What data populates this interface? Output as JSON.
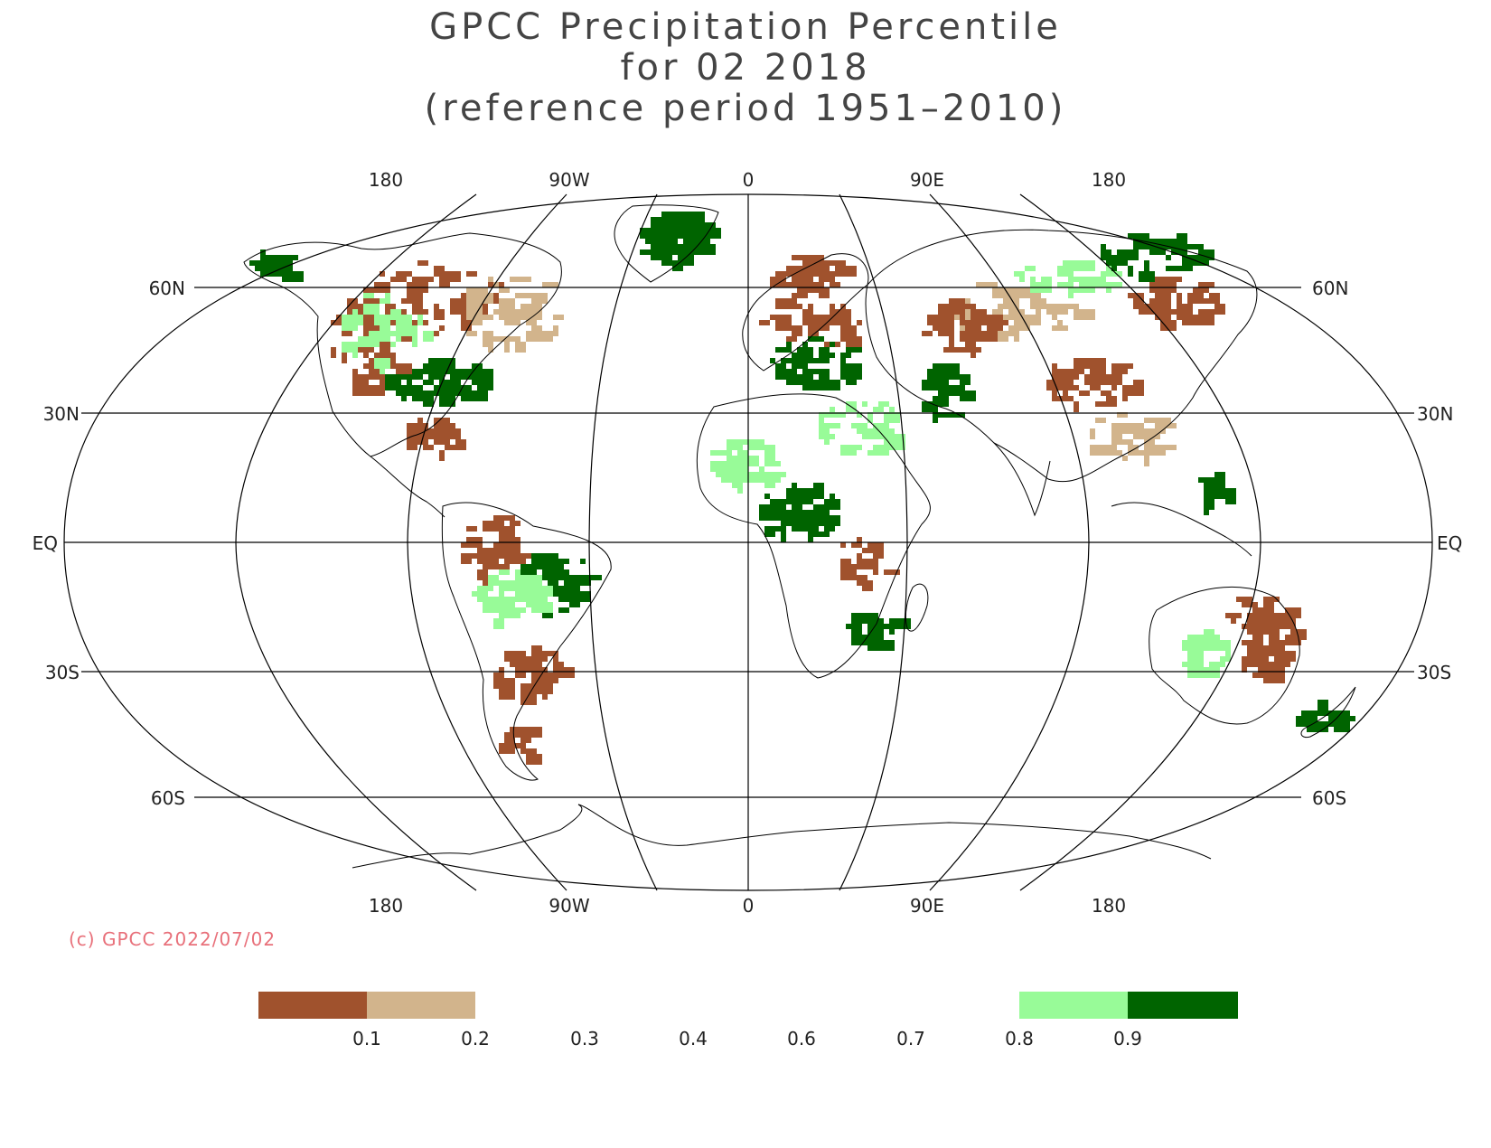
{
  "title": {
    "line1": "GPCC Precipitation Percentile",
    "line2": "for 02 2018",
    "line3": "(reference period 1951–2010)"
  },
  "map": {
    "projection": "Robinson",
    "longitude_labels": [
      "180",
      "90W",
      "0",
      "90E",
      "180"
    ],
    "latitude_labels": {
      "n60": "60N",
      "n30": "30N",
      "eq": "EQ",
      "s30": "30S",
      "s60": "60S"
    }
  },
  "copyright": "(c) GPCC 2022/07/02",
  "legend": {
    "tick_labels": [
      "0.1",
      "0.2",
      "0.3",
      "0.4",
      "0.6",
      "0.7",
      "0.8",
      "0.9"
    ],
    "colors": {
      "very_dry": "#a0522d",
      "dry": "#d2b48c",
      "wet": "#98fb98",
      "very_wet": "#006400"
    }
  }
}
